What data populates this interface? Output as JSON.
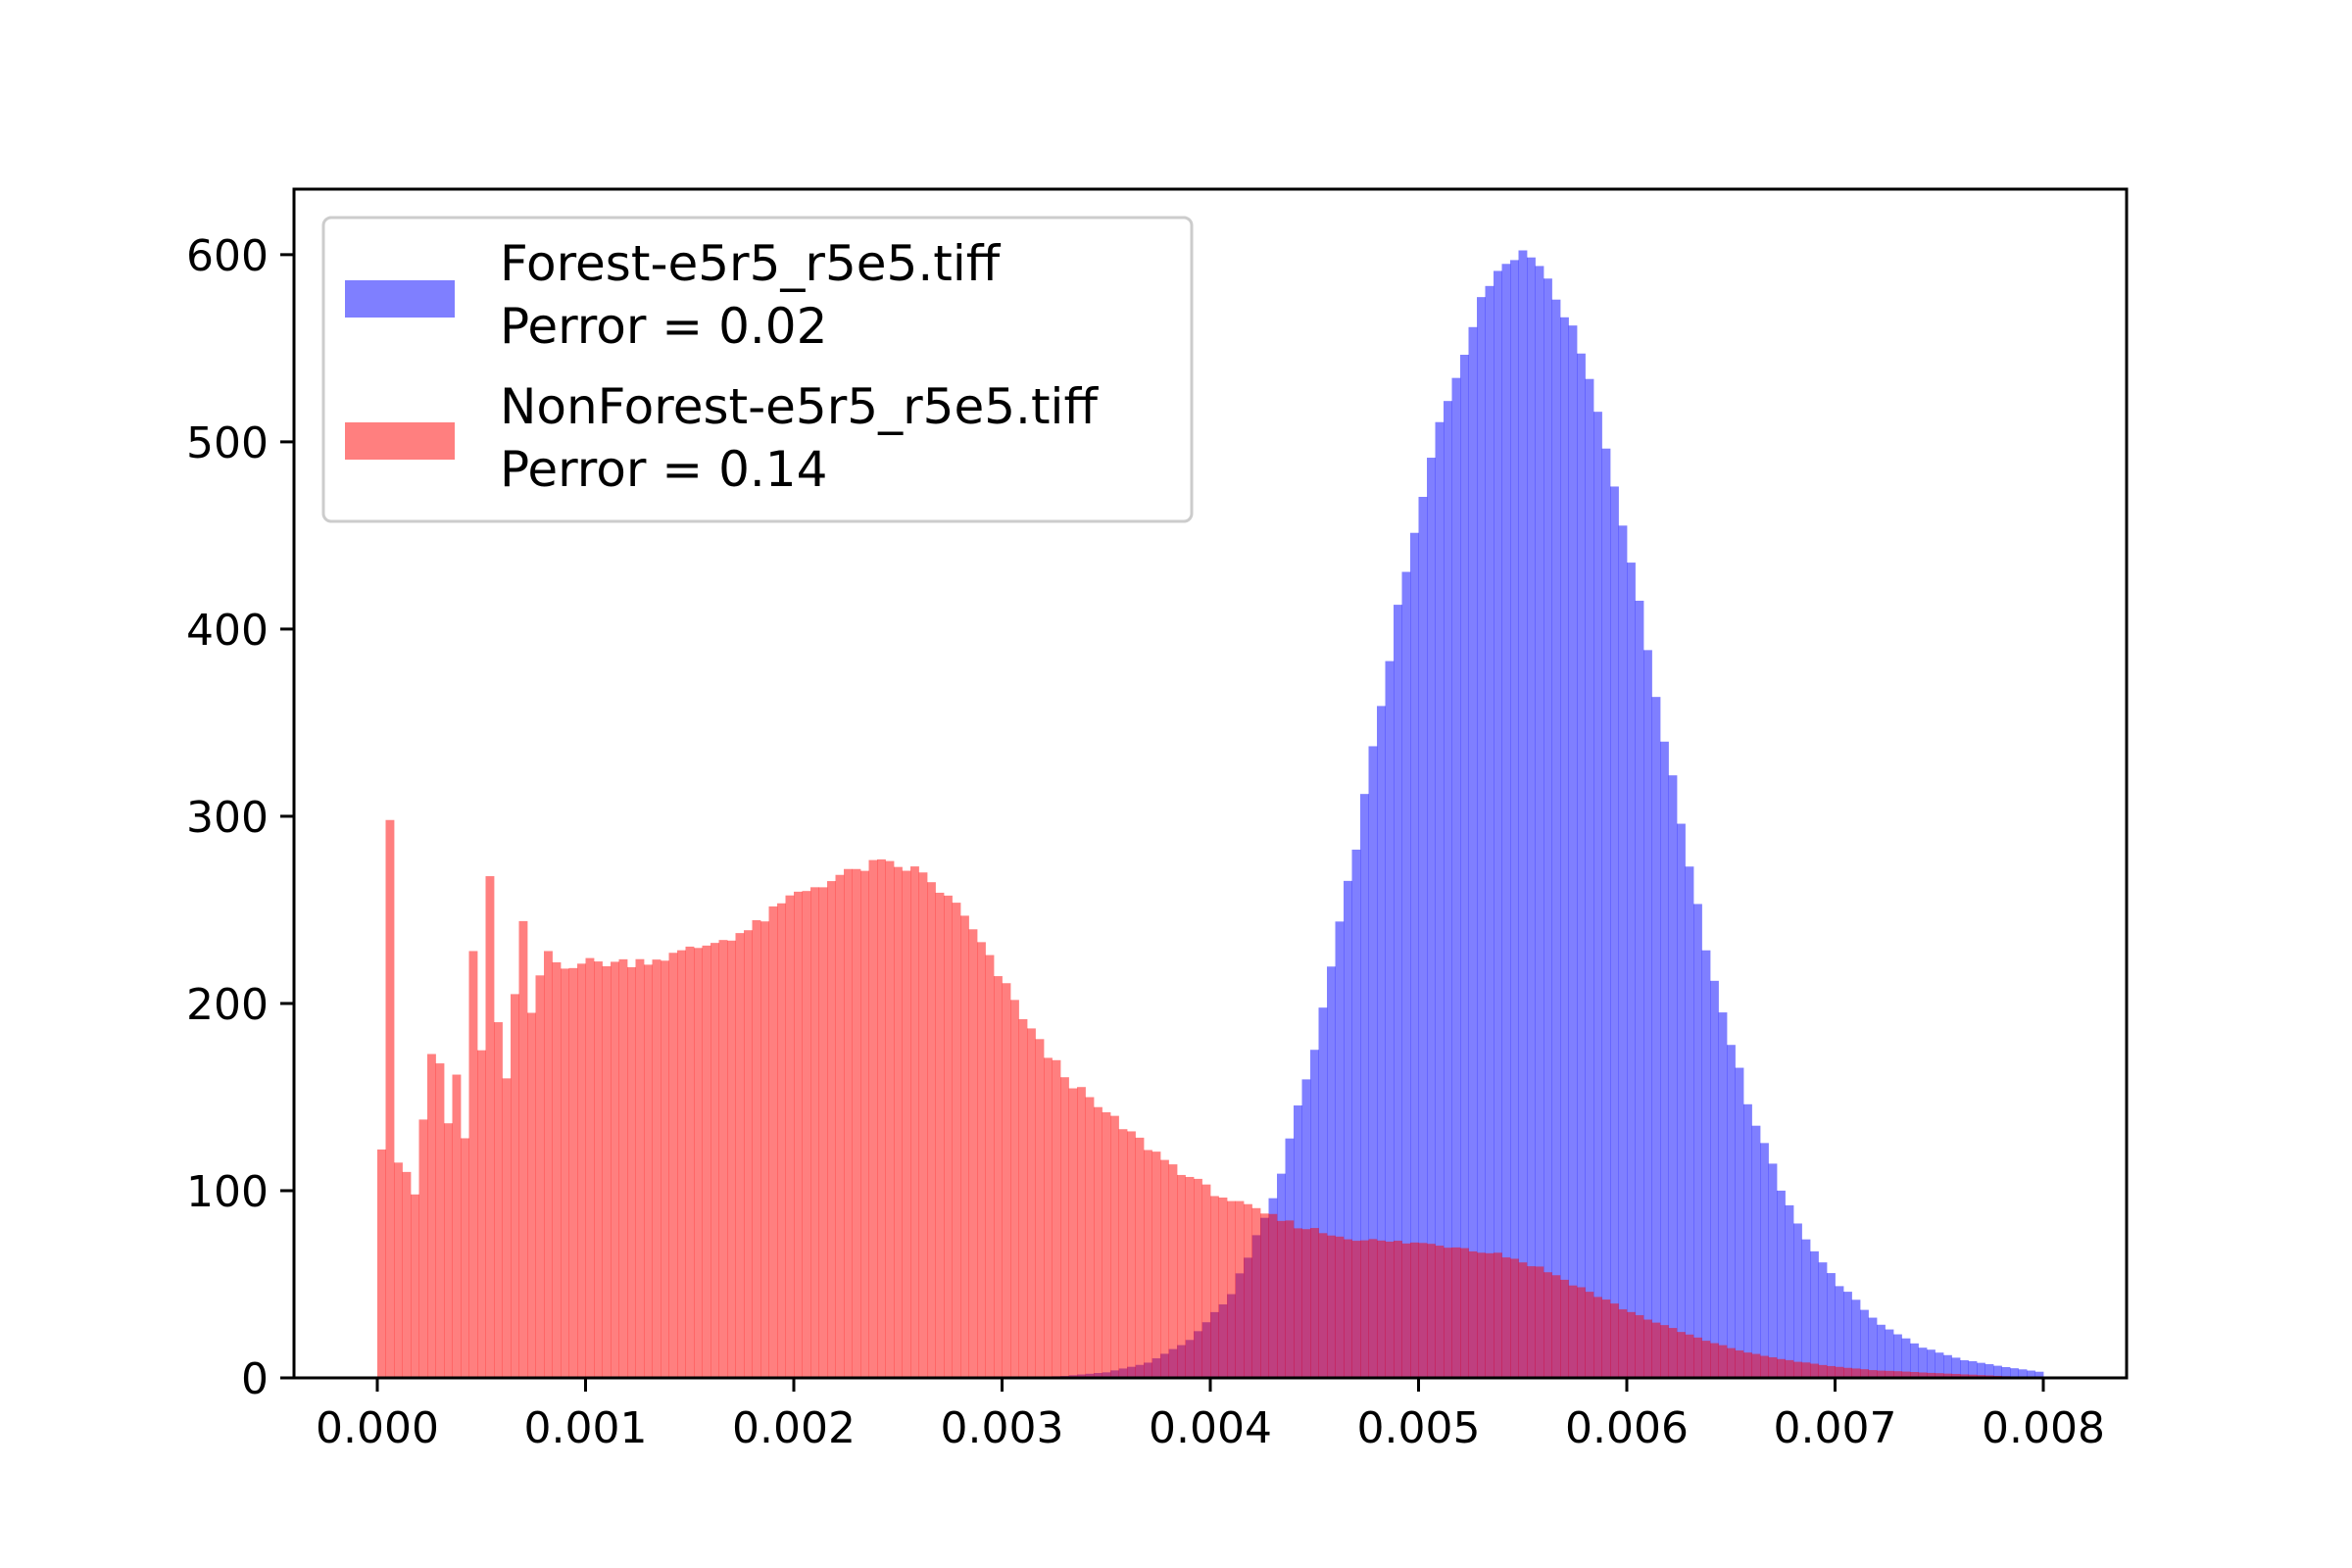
{
  "chart_data": {
    "type": "bar",
    "title": "",
    "xlabel": "",
    "ylabel": "",
    "xlim": [
      -0.0004,
      0.0084
    ],
    "ylim": [
      0,
      635
    ],
    "x_ticks": [
      "0.000",
      "0.001",
      "0.002",
      "0.003",
      "0.004",
      "0.005",
      "0.006",
      "0.007",
      "0.008"
    ],
    "y_ticks": [
      "0",
      "100",
      "200",
      "300",
      "400",
      "500",
      "600"
    ],
    "grid": false,
    "legend_position": "upper-left",
    "bin_width": 4e-05,
    "series": [
      {
        "legend_label_line1": "Forest-e5r5_r5e5.tiff",
        "legend_label_line2": "Perror = 0.02",
        "color": "#0000ff",
        "opacity": 0.5,
        "points": [
          [
            0.0,
            0
          ],
          [
            0.003,
            0
          ],
          [
            0.0033,
            1
          ],
          [
            0.0035,
            3
          ],
          [
            0.0037,
            8
          ],
          [
            0.0039,
            20
          ],
          [
            0.0041,
            45
          ],
          [
            0.0043,
            95
          ],
          [
            0.0045,
            175
          ],
          [
            0.0047,
            285
          ],
          [
            0.0049,
            410
          ],
          [
            0.0051,
            510
          ],
          [
            0.0053,
            575
          ],
          [
            0.0054,
            597
          ],
          [
            0.0055,
            602
          ],
          [
            0.0056,
            593
          ],
          [
            0.0058,
            545
          ],
          [
            0.006,
            448
          ],
          [
            0.0062,
            330
          ],
          [
            0.0064,
            220
          ],
          [
            0.0066,
            140
          ],
          [
            0.0068,
            85
          ],
          [
            0.007,
            52
          ],
          [
            0.0072,
            30
          ],
          [
            0.0074,
            17
          ],
          [
            0.0076,
            10
          ],
          [
            0.0078,
            6
          ],
          [
            0.008,
            3
          ]
        ]
      },
      {
        "legend_label_line1": "NonForest-e5r5_r5e5.tiff",
        "legend_label_line2": "Perror = 0.14",
        "color": "#ff0000",
        "opacity": 0.5,
        "points": [
          [
            0.0,
            122
          ],
          [
            0.0002,
            150
          ],
          [
            0.0004,
            190
          ],
          [
            0.0006,
            215
          ],
          [
            0.0008,
            220
          ],
          [
            0.001,
            222
          ],
          [
            0.0012,
            222
          ],
          [
            0.0014,
            225
          ],
          [
            0.0016,
            232
          ],
          [
            0.0018,
            240
          ],
          [
            0.002,
            258
          ],
          [
            0.0022,
            267
          ],
          [
            0.0024,
            275
          ],
          [
            0.0026,
            271
          ],
          [
            0.0028,
            250
          ],
          [
            0.003,
            212
          ],
          [
            0.0032,
            175
          ],
          [
            0.0034,
            150
          ],
          [
            0.0036,
            132
          ],
          [
            0.0038,
            115
          ],
          [
            0.004,
            100
          ],
          [
            0.0042,
            90
          ],
          [
            0.0044,
            82
          ],
          [
            0.0046,
            76
          ],
          [
            0.0048,
            73
          ],
          [
            0.005,
            72
          ],
          [
            0.0052,
            70
          ],
          [
            0.0054,
            66
          ],
          [
            0.0056,
            58
          ],
          [
            0.0058,
            47
          ],
          [
            0.006,
            36
          ],
          [
            0.0062,
            27
          ],
          [
            0.0064,
            19
          ],
          [
            0.0066,
            13
          ],
          [
            0.0068,
            9
          ],
          [
            0.007,
            6
          ],
          [
            0.0072,
            4
          ],
          [
            0.0074,
            3
          ],
          [
            0.0076,
            2
          ],
          [
            0.0078,
            1
          ],
          [
            0.008,
            0
          ]
        ],
        "spikes": [
          [
            0.0,
            122
          ],
          [
            4e-05,
            298
          ],
          [
            8e-05,
            115
          ],
          [
            0.00012,
            110
          ],
          [
            0.00016,
            98
          ],
          [
            0.0002,
            138
          ],
          [
            0.00024,
            173
          ],
          [
            0.00028,
            168
          ],
          [
            0.00032,
            136
          ],
          [
            0.00036,
            162
          ],
          [
            0.0004,
            128
          ],
          [
            0.00044,
            228
          ],
          [
            0.00048,
            175
          ],
          [
            0.00052,
            268
          ],
          [
            0.00056,
            190
          ],
          [
            0.0006,
            160
          ],
          [
            0.00064,
            205
          ],
          [
            0.00068,
            244
          ],
          [
            0.00072,
            195
          ],
          [
            0.00076,
            215
          ],
          [
            0.0008,
            228
          ],
          [
            0.00084,
            222
          ]
        ]
      }
    ]
  }
}
